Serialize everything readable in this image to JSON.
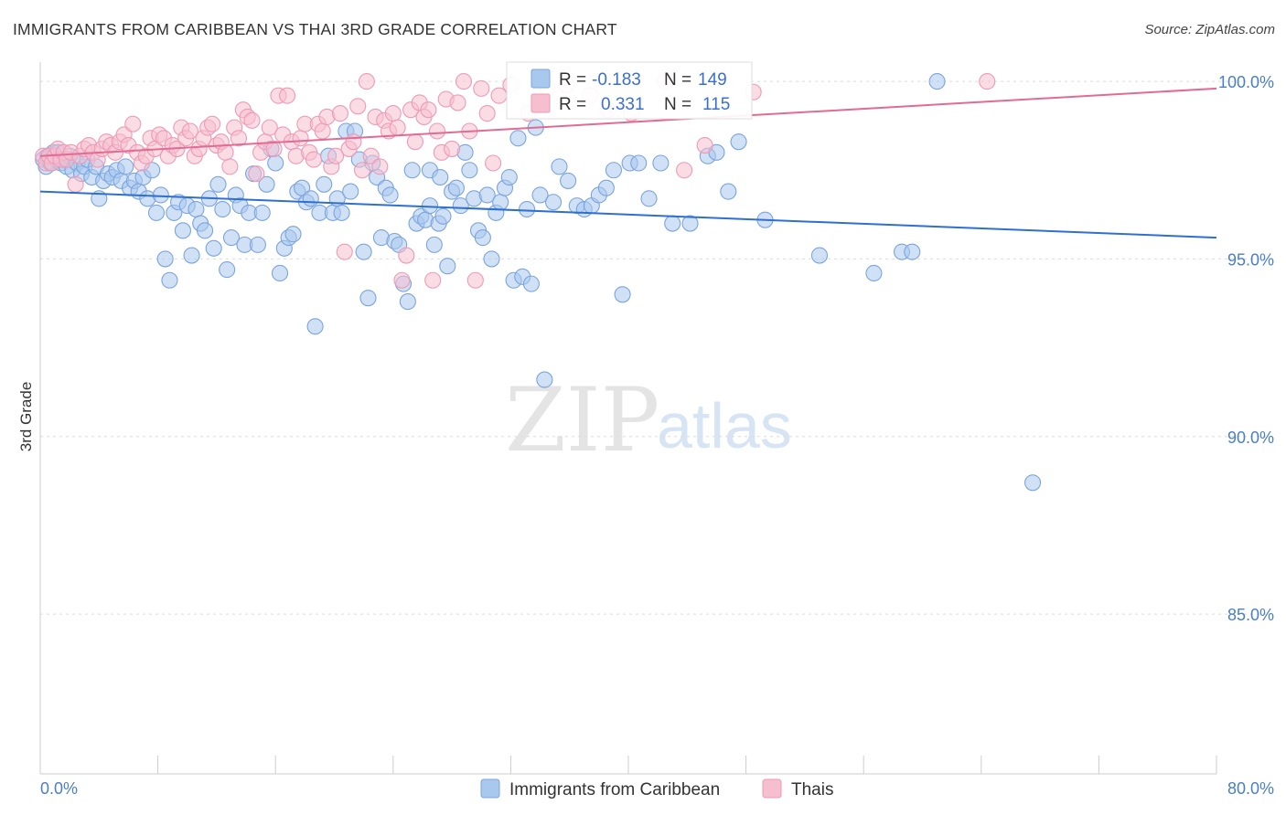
{
  "title": "IMMIGRANTS FROM CARIBBEAN VS THAI 3RD GRADE CORRELATION CHART",
  "source": "Source: ZipAtlas.com",
  "watermark": {
    "part1": "ZIP",
    "part2": "atlas"
  },
  "colors": {
    "blue_fill": "#a9c8ee",
    "blue_stroke": "#7ba4dc",
    "blue_line": "#2f6fd0",
    "pink_fill": "#f6bfd0",
    "pink_stroke": "#ee9ab5",
    "pink_line": "#e26b94",
    "tick_text": "#4a7fc8",
    "grid": "#dcdcdc"
  },
  "legend": {
    "rows": [
      {
        "r_label": "R =",
        "r_value": "-0.183",
        "n_label": "N =",
        "n_value": "149"
      },
      {
        "r_label": "R =",
        "r_value": "0.331",
        "n_label": "N =",
        "n_value": "115"
      }
    ]
  },
  "chart_data": {
    "type": "scatter",
    "title": "IMMIGRANTS FROM CARIBBEAN VS THAI 3RD GRADE CORRELATION CHART",
    "xlabel": "",
    "ylabel": "3rd Grade",
    "xlim": [
      0,
      80
    ],
    "ylim": [
      80.5,
      100.8
    ],
    "x_tick_labels": [
      "0.0%",
      "80.0%"
    ],
    "y_ticks": [
      85,
      90,
      95,
      100
    ],
    "y_tick_labels": [
      "85.0%",
      "90.0%",
      "95.0%",
      "100.0%"
    ],
    "series": [
      {
        "name": "Immigrants from Caribbean",
        "color": "blue",
        "R": -0.183,
        "N": 149,
        "trend": {
          "x": [
            0,
            80
          ],
          "y": [
            96.9,
            95.6
          ]
        },
        "points": [
          [
            0.2,
            97.8
          ],
          [
            0.4,
            97.6
          ],
          [
            0.5,
            97.9
          ],
          [
            0.7,
            97.7
          ],
          [
            0.9,
            98.0
          ],
          [
            1.1,
            97.8
          ],
          [
            1.2,
            98.0
          ],
          [
            1.4,
            97.7
          ],
          [
            1.6,
            97.8
          ],
          [
            1.8,
            97.6
          ],
          [
            2.0,
            97.9
          ],
          [
            2.2,
            97.5
          ],
          [
            2.5,
            97.7
          ],
          [
            2.8,
            97.4
          ],
          [
            3.0,
            97.6
          ],
          [
            3.2,
            97.8
          ],
          [
            3.5,
            97.3
          ],
          [
            3.8,
            97.6
          ],
          [
            4.0,
            96.7
          ],
          [
            4.3,
            97.2
          ],
          [
            4.6,
            97.4
          ],
          [
            4.9,
            97.3
          ],
          [
            5.2,
            97.5
          ],
          [
            5.5,
            97.2
          ],
          [
            5.8,
            97.6
          ],
          [
            6.1,
            97.0
          ],
          [
            6.4,
            97.2
          ],
          [
            6.7,
            96.9
          ],
          [
            7.0,
            97.3
          ],
          [
            7.3,
            96.7
          ],
          [
            7.6,
            97.5
          ],
          [
            7.9,
            96.3
          ],
          [
            8.2,
            96.8
          ],
          [
            8.5,
            95.0
          ],
          [
            8.8,
            94.4
          ],
          [
            9.1,
            96.3
          ],
          [
            9.4,
            96.6
          ],
          [
            9.7,
            95.8
          ],
          [
            10.0,
            96.5
          ],
          [
            10.3,
            95.1
          ],
          [
            10.6,
            96.4
          ],
          [
            10.9,
            96.0
          ],
          [
            11.2,
            95.8
          ],
          [
            11.5,
            96.7
          ],
          [
            11.8,
            95.3
          ],
          [
            12.1,
            97.1
          ],
          [
            12.4,
            96.4
          ],
          [
            12.7,
            94.7
          ],
          [
            13.0,
            95.6
          ],
          [
            13.3,
            96.8
          ],
          [
            13.6,
            96.5
          ],
          [
            13.9,
            95.4
          ],
          [
            14.2,
            96.3
          ],
          [
            14.5,
            97.4
          ],
          [
            14.8,
            95.4
          ],
          [
            15.1,
            96.3
          ],
          [
            15.4,
            97.1
          ],
          [
            15.7,
            98.1
          ],
          [
            16.0,
            97.7
          ],
          [
            16.3,
            94.6
          ],
          [
            16.6,
            95.3
          ],
          [
            16.9,
            95.6
          ],
          [
            17.2,
            95.7
          ],
          [
            17.5,
            96.9
          ],
          [
            17.8,
            97.0
          ],
          [
            18.1,
            96.6
          ],
          [
            18.4,
            96.7
          ],
          [
            18.7,
            93.1
          ],
          [
            19.0,
            96.3
          ],
          [
            19.3,
            97.1
          ],
          [
            19.6,
            97.9
          ],
          [
            19.9,
            96.3
          ],
          [
            20.2,
            96.7
          ],
          [
            20.5,
            96.3
          ],
          [
            20.8,
            98.6
          ],
          [
            21.1,
            96.9
          ],
          [
            21.4,
            98.6
          ],
          [
            21.7,
            97.8
          ],
          [
            22.0,
            95.2
          ],
          [
            22.3,
            93.9
          ],
          [
            22.6,
            97.7
          ],
          [
            22.9,
            97.3
          ],
          [
            23.2,
            95.6
          ],
          [
            23.5,
            97.0
          ],
          [
            23.8,
            96.8
          ],
          [
            24.1,
            95.5
          ],
          [
            24.4,
            95.4
          ],
          [
            24.7,
            94.3
          ],
          [
            25.0,
            93.8
          ],
          [
            25.3,
            97.5
          ],
          [
            25.6,
            96.0
          ],
          [
            25.9,
            96.2
          ],
          [
            26.2,
            96.1
          ],
          [
            26.5,
            96.5
          ],
          [
            26.8,
            95.4
          ],
          [
            27.1,
            96.0
          ],
          [
            27.4,
            96.2
          ],
          [
            27.7,
            94.8
          ],
          [
            28.0,
            96.9
          ],
          [
            28.3,
            97.0
          ],
          [
            28.6,
            96.5
          ],
          [
            28.9,
            98.0
          ],
          [
            29.2,
            97.5
          ],
          [
            29.5,
            96.7
          ],
          [
            29.8,
            95.8
          ],
          [
            30.1,
            95.6
          ],
          [
            30.4,
            96.8
          ],
          [
            30.7,
            95.0
          ],
          [
            31.0,
            96.3
          ],
          [
            31.3,
            96.6
          ],
          [
            31.6,
            97.0
          ],
          [
            31.9,
            97.3
          ],
          [
            32.2,
            94.4
          ],
          [
            32.5,
            98.4
          ],
          [
            32.8,
            94.5
          ],
          [
            33.1,
            96.4
          ],
          [
            33.4,
            94.3
          ],
          [
            33.7,
            98.7
          ],
          [
            34.0,
            96.8
          ],
          [
            34.3,
            91.6
          ],
          [
            34.9,
            96.6
          ],
          [
            35.3,
            97.6
          ],
          [
            35.9,
            97.2
          ],
          [
            36.5,
            96.5
          ],
          [
            37.0,
            96.4
          ],
          [
            37.5,
            96.5
          ],
          [
            38.0,
            96.8
          ],
          [
            38.5,
            97.0
          ],
          [
            39.0,
            97.5
          ],
          [
            39.6,
            94.0
          ],
          [
            40.1,
            97.7
          ],
          [
            40.7,
            97.7
          ],
          [
            41.4,
            96.7
          ],
          [
            42.2,
            97.7
          ],
          [
            43.0,
            96.0
          ],
          [
            44.2,
            96.0
          ],
          [
            45.4,
            97.9
          ],
          [
            46.0,
            98.0
          ],
          [
            46.8,
            96.9
          ],
          [
            47.5,
            98.3
          ],
          [
            49.3,
            96.1
          ],
          [
            53.0,
            95.1
          ],
          [
            56.7,
            94.6
          ],
          [
            58.6,
            95.2
          ],
          [
            59.3,
            95.2
          ],
          [
            61.0,
            100.0
          ],
          [
            67.5,
            88.7
          ],
          [
            26.5,
            97.5
          ],
          [
            27.2,
            97.3
          ]
        ]
      },
      {
        "name": "Thais",
        "color": "pink",
        "R": 0.331,
        "N": 115,
        "trend": {
          "x": [
            0,
            80
          ],
          "y": [
            97.9,
            99.8
          ]
        },
        "points": [
          [
            0.2,
            97.9
          ],
          [
            0.4,
            97.7
          ],
          [
            0.6,
            97.9
          ],
          [
            0.8,
            97.7
          ],
          [
            1.0,
            97.9
          ],
          [
            1.2,
            98.1
          ],
          [
            1.4,
            97.8
          ],
          [
            1.6,
            98.0
          ],
          [
            1.8,
            97.8
          ],
          [
            2.1,
            98.0
          ],
          [
            2.4,
            97.1
          ],
          [
            2.7,
            97.9
          ],
          [
            3.0,
            98.1
          ],
          [
            3.3,
            98.2
          ],
          [
            3.6,
            98.0
          ],
          [
            3.9,
            97.8
          ],
          [
            4.2,
            98.1
          ],
          [
            4.5,
            98.3
          ],
          [
            4.8,
            98.2
          ],
          [
            5.1,
            98.0
          ],
          [
            5.4,
            98.3
          ],
          [
            5.7,
            98.5
          ],
          [
            6.0,
            98.2
          ],
          [
            6.3,
            98.8
          ],
          [
            6.6,
            98.0
          ],
          [
            6.9,
            97.7
          ],
          [
            7.2,
            97.9
          ],
          [
            7.5,
            98.4
          ],
          [
            7.8,
            98.1
          ],
          [
            8.1,
            98.5
          ],
          [
            8.4,
            98.4
          ],
          [
            8.7,
            97.9
          ],
          [
            9.0,
            98.2
          ],
          [
            9.3,
            98.1
          ],
          [
            9.6,
            98.7
          ],
          [
            9.9,
            98.4
          ],
          [
            10.2,
            98.6
          ],
          [
            10.5,
            97.9
          ],
          [
            10.8,
            98.1
          ],
          [
            11.1,
            98.4
          ],
          [
            11.4,
            98.7
          ],
          [
            11.7,
            98.8
          ],
          [
            12.0,
            98.2
          ],
          [
            12.3,
            98.3
          ],
          [
            12.6,
            98.0
          ],
          [
            12.9,
            97.6
          ],
          [
            13.2,
            98.7
          ],
          [
            13.5,
            98.4
          ],
          [
            13.8,
            99.2
          ],
          [
            14.1,
            99.0
          ],
          [
            14.4,
            98.9
          ],
          [
            14.7,
            97.4
          ],
          [
            15.0,
            98.0
          ],
          [
            15.3,
            98.3
          ],
          [
            15.6,
            98.7
          ],
          [
            15.9,
            98.1
          ],
          [
            16.2,
            99.6
          ],
          [
            16.5,
            98.5
          ],
          [
            16.8,
            99.6
          ],
          [
            17.1,
            98.3
          ],
          [
            17.4,
            97.9
          ],
          [
            17.7,
            98.4
          ],
          [
            18.0,
            98.8
          ],
          [
            18.3,
            98.0
          ],
          [
            18.6,
            97.8
          ],
          [
            18.9,
            98.8
          ],
          [
            19.2,
            98.6
          ],
          [
            19.5,
            99.0
          ],
          [
            19.8,
            97.6
          ],
          [
            20.1,
            97.9
          ],
          [
            20.4,
            99.1
          ],
          [
            20.7,
            95.2
          ],
          [
            21.0,
            98.1
          ],
          [
            21.3,
            98.3
          ],
          [
            21.6,
            99.3
          ],
          [
            21.9,
            97.5
          ],
          [
            22.2,
            100.0
          ],
          [
            22.5,
            97.9
          ],
          [
            22.8,
            99.0
          ],
          [
            23.1,
            97.6
          ],
          [
            23.4,
            98.9
          ],
          [
            23.7,
            98.6
          ],
          [
            24.0,
            99.1
          ],
          [
            24.3,
            98.7
          ],
          [
            24.6,
            94.4
          ],
          [
            24.9,
            95.1
          ],
          [
            25.2,
            99.2
          ],
          [
            25.5,
            98.3
          ],
          [
            25.8,
            99.4
          ],
          [
            26.1,
            99.0
          ],
          [
            26.4,
            99.2
          ],
          [
            26.7,
            94.4
          ],
          [
            27.0,
            98.6
          ],
          [
            27.3,
            98.0
          ],
          [
            27.6,
            99.5
          ],
          [
            28.0,
            98.1
          ],
          [
            28.4,
            99.4
          ],
          [
            28.8,
            100.0
          ],
          [
            29.2,
            98.6
          ],
          [
            29.6,
            94.4
          ],
          [
            30.0,
            99.8
          ],
          [
            30.4,
            99.1
          ],
          [
            30.8,
            97.7
          ],
          [
            31.2,
            99.6
          ],
          [
            32.0,
            99.9
          ],
          [
            33.2,
            99.1
          ],
          [
            34.5,
            99.8
          ],
          [
            35.8,
            99.9
          ],
          [
            37.4,
            99.6
          ],
          [
            38.6,
            99.2
          ],
          [
            40.2,
            99.1
          ],
          [
            42.5,
            100.0
          ],
          [
            43.8,
            97.5
          ],
          [
            45.2,
            98.2
          ],
          [
            48.5,
            99.7
          ],
          [
            64.4,
            100.0
          ]
        ]
      }
    ],
    "legend": [
      "Immigrants from Caribbean",
      "Thais"
    ]
  }
}
